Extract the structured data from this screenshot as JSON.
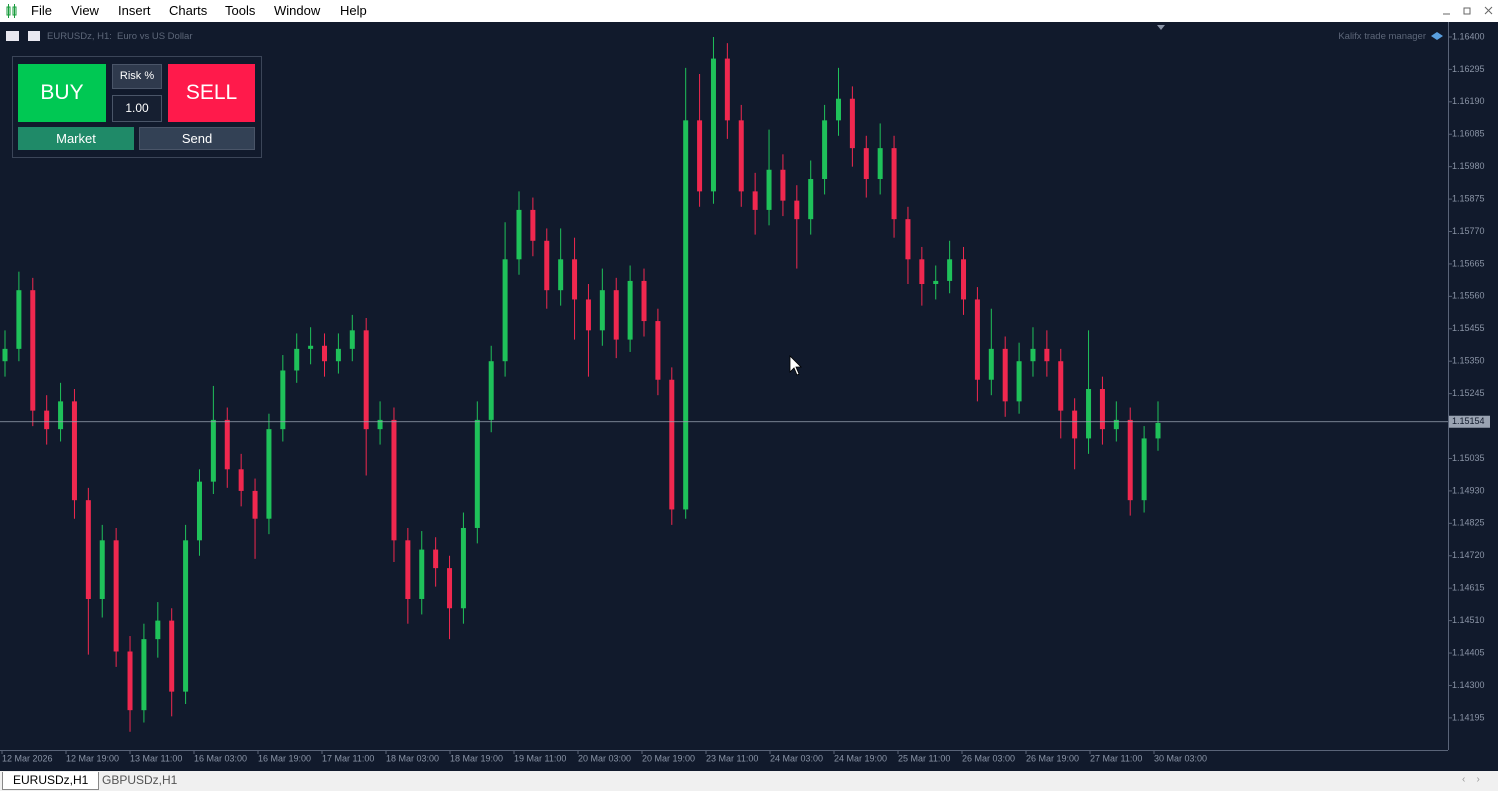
{
  "menu": [
    "File",
    "View",
    "Insert",
    "Charts",
    "Tools",
    "Window",
    "Help"
  ],
  "chart_header": {
    "symbol": "EURUSDz, H1:",
    "description": "Euro vs US Dollar",
    "indicator": "Kalifx trade manager"
  },
  "trade_panel": {
    "buy": "BUY",
    "sell": "SELL",
    "risk_label": "Risk %",
    "risk_value": "1.00",
    "order_type": "Market",
    "send": "Send"
  },
  "chart_data": {
    "type": "candlestick",
    "colors": {
      "up": "#1fc15a",
      "down": "#f0284f"
    },
    "ylim": [
      1.14091,
      1.16442
    ],
    "yticks": [
      {
        "value": 1.164,
        "label": "1.16400"
      },
      {
        "value": 1.16295,
        "label": "1.16295"
      },
      {
        "value": 1.1619,
        "label": "1.16190"
      },
      {
        "value": 1.16085,
        "label": "1.16085"
      },
      {
        "value": 1.1598,
        "label": "1.15980"
      },
      {
        "value": 1.15875,
        "label": "1.15875"
      },
      {
        "value": 1.1577,
        "label": "1.15770"
      },
      {
        "value": 1.15665,
        "label": "1.15665"
      },
      {
        "value": 1.1556,
        "label": "1.15560"
      },
      {
        "value": 1.15455,
        "label": "1.15455"
      },
      {
        "value": 1.1535,
        "label": "1.15350"
      },
      {
        "value": 1.15245,
        "label": "1.15245"
      },
      {
        "value": 1.15035,
        "label": "1.15035"
      },
      {
        "value": 1.1493,
        "label": "1.14930"
      },
      {
        "value": 1.14825,
        "label": "1.14825"
      },
      {
        "value": 1.1472,
        "label": "1.14720"
      },
      {
        "value": 1.14615,
        "label": "1.14615"
      },
      {
        "value": 1.1451,
        "label": "1.14510"
      },
      {
        "value": 1.14405,
        "label": "1.14405"
      },
      {
        "value": 1.143,
        "label": "1.14300"
      },
      {
        "value": 1.14195,
        "label": "1.14195"
      }
    ],
    "current_price": {
      "value": 1.15154,
      "label": "1.15154"
    },
    "x_labels": [
      "12 Mar 2026",
      "12 Mar 19:00",
      "13 Mar 11:00",
      "16 Mar 03:00",
      "16 Mar 19:00",
      "17 Mar 11:00",
      "18 Mar 03:00",
      "18 Mar 19:00",
      "19 Mar 11:00",
      "20 Mar 03:00",
      "20 Mar 19:00",
      "23 Mar 11:00",
      "24 Mar 03:00",
      "24 Mar 19:00",
      "25 Mar 11:00",
      "26 Mar 03:00",
      "26 Mar 19:00",
      "27 Mar 11:00",
      "30 Mar 03:00"
    ],
    "candles": [
      [
        1.1535,
        1.1545,
        1.153,
        1.1539
      ],
      [
        1.1539,
        1.1564,
        1.1535,
        1.1558
      ],
      [
        1.1558,
        1.1562,
        1.1514,
        1.1519
      ],
      [
        1.1519,
        1.1524,
        1.1508,
        1.1513
      ],
      [
        1.1513,
        1.1528,
        1.1509,
        1.1522
      ],
      [
        1.1522,
        1.1526,
        1.1484,
        1.149
      ],
      [
        1.149,
        1.1494,
        1.144,
        1.1458
      ],
      [
        1.1458,
        1.1482,
        1.1452,
        1.1477
      ],
      [
        1.1477,
        1.1481,
        1.1436,
        1.1441
      ],
      [
        1.1441,
        1.1446,
        1.1415,
        1.1422
      ],
      [
        1.1422,
        1.145,
        1.1418,
        1.1445
      ],
      [
        1.1445,
        1.1457,
        1.1439,
        1.1451
      ],
      [
        1.1451,
        1.1455,
        1.142,
        1.1428
      ],
      [
        1.1428,
        1.1482,
        1.1424,
        1.1477
      ],
      [
        1.1477,
        1.15,
        1.1472,
        1.1496
      ],
      [
        1.1496,
        1.1527,
        1.1492,
        1.1516
      ],
      [
        1.1516,
        1.152,
        1.1494,
        1.15
      ],
      [
        1.15,
        1.1505,
        1.1488,
        1.1493
      ],
      [
        1.1493,
        1.1497,
        1.1471,
        1.1484
      ],
      [
        1.1484,
        1.1518,
        1.1479,
        1.1513
      ],
      [
        1.1513,
        1.1537,
        1.1509,
        1.1532
      ],
      [
        1.1532,
        1.1544,
        1.1528,
        1.1539
      ],
      [
        1.1539,
        1.1546,
        1.1534,
        1.154
      ],
      [
        1.154,
        1.1544,
        1.153,
        1.1535
      ],
      [
        1.1535,
        1.1544,
        1.1531,
        1.1539
      ],
      [
        1.1539,
        1.155,
        1.1535,
        1.1545
      ],
      [
        1.1545,
        1.1549,
        1.1498,
        1.1513
      ],
      [
        1.1513,
        1.1522,
        1.1508,
        1.1516
      ],
      [
        1.1516,
        1.152,
        1.147,
        1.1477
      ],
      [
        1.1477,
        1.1481,
        1.145,
        1.1458
      ],
      [
        1.1458,
        1.148,
        1.1453,
        1.1474
      ],
      [
        1.1474,
        1.1478,
        1.1462,
        1.1468
      ],
      [
        1.1468,
        1.1472,
        1.1445,
        1.1455
      ],
      [
        1.1455,
        1.1486,
        1.145,
        1.1481
      ],
      [
        1.1481,
        1.1522,
        1.1476,
        1.1516
      ],
      [
        1.1516,
        1.154,
        1.1512,
        1.1535
      ],
      [
        1.1535,
        1.158,
        1.153,
        1.1568
      ],
      [
        1.1568,
        1.159,
        1.1563,
        1.1584
      ],
      [
        1.1584,
        1.1588,
        1.1569,
        1.1574
      ],
      [
        1.1574,
        1.1578,
        1.1552,
        1.1558
      ],
      [
        1.1558,
        1.1578,
        1.1553,
        1.1568
      ],
      [
        1.1568,
        1.1575,
        1.1542,
        1.1555
      ],
      [
        1.1555,
        1.156,
        1.153,
        1.1545
      ],
      [
        1.1545,
        1.1565,
        1.154,
        1.1558
      ],
      [
        1.1558,
        1.1562,
        1.1536,
        1.1542
      ],
      [
        1.1542,
        1.1566,
        1.1538,
        1.1561
      ],
      [
        1.1561,
        1.1565,
        1.1543,
        1.1548
      ],
      [
        1.1548,
        1.1552,
        1.1524,
        1.1529
      ],
      [
        1.1529,
        1.1533,
        1.1482,
        1.1487
      ],
      [
        1.1487,
        1.163,
        1.1484,
        1.1613
      ],
      [
        1.1613,
        1.1628,
        1.1585,
        1.159
      ],
      [
        1.159,
        1.164,
        1.1586,
        1.1633
      ],
      [
        1.1633,
        1.1638,
        1.1607,
        1.1613
      ],
      [
        1.1613,
        1.1618,
        1.1585,
        1.159
      ],
      [
        1.159,
        1.1596,
        1.1576,
        1.1584
      ],
      [
        1.1584,
        1.161,
        1.1579,
        1.1597
      ],
      [
        1.1597,
        1.1602,
        1.1582,
        1.1587
      ],
      [
        1.1587,
        1.1592,
        1.1565,
        1.1581
      ],
      [
        1.1581,
        1.16,
        1.1576,
        1.1594
      ],
      [
        1.1594,
        1.1618,
        1.1589,
        1.1613
      ],
      [
        1.1613,
        1.163,
        1.1608,
        1.162
      ],
      [
        1.162,
        1.1624,
        1.1598,
        1.1604
      ],
      [
        1.1604,
        1.1608,
        1.1588,
        1.1594
      ],
      [
        1.1594,
        1.1612,
        1.1589,
        1.1604
      ],
      [
        1.1604,
        1.1608,
        1.1575,
        1.1581
      ],
      [
        1.1581,
        1.1585,
        1.156,
        1.1568
      ],
      [
        1.1568,
        1.1572,
        1.1553,
        1.156
      ],
      [
        1.156,
        1.1566,
        1.1555,
        1.1561
      ],
      [
        1.1561,
        1.1574,
        1.1557,
        1.1568
      ],
      [
        1.1568,
        1.1572,
        1.155,
        1.1555
      ],
      [
        1.1555,
        1.1559,
        1.1522,
        1.1529
      ],
      [
        1.1529,
        1.1552,
        1.1524,
        1.1539
      ],
      [
        1.1539,
        1.1543,
        1.1517,
        1.1522
      ],
      [
        1.1522,
        1.1541,
        1.1518,
        1.1535
      ],
      [
        1.1535,
        1.1546,
        1.153,
        1.1539
      ],
      [
        1.1539,
        1.1545,
        1.153,
        1.1535
      ],
      [
        1.1535,
        1.1539,
        1.151,
        1.1519
      ],
      [
        1.1519,
        1.1523,
        1.15,
        1.151
      ],
      [
        1.151,
        1.1545,
        1.1505,
        1.1526
      ],
      [
        1.1526,
        1.153,
        1.1508,
        1.1513
      ],
      [
        1.1513,
        1.1522,
        1.1509,
        1.1516
      ],
      [
        1.1516,
        1.152,
        1.1485,
        1.149
      ],
      [
        1.149,
        1.1514,
        1.1486,
        1.151
      ],
      [
        1.151,
        1.1522,
        1.1506,
        1.1515
      ]
    ]
  },
  "tabs": [
    "EURUSDz,H1",
    "GBPUSDz,H1"
  ]
}
